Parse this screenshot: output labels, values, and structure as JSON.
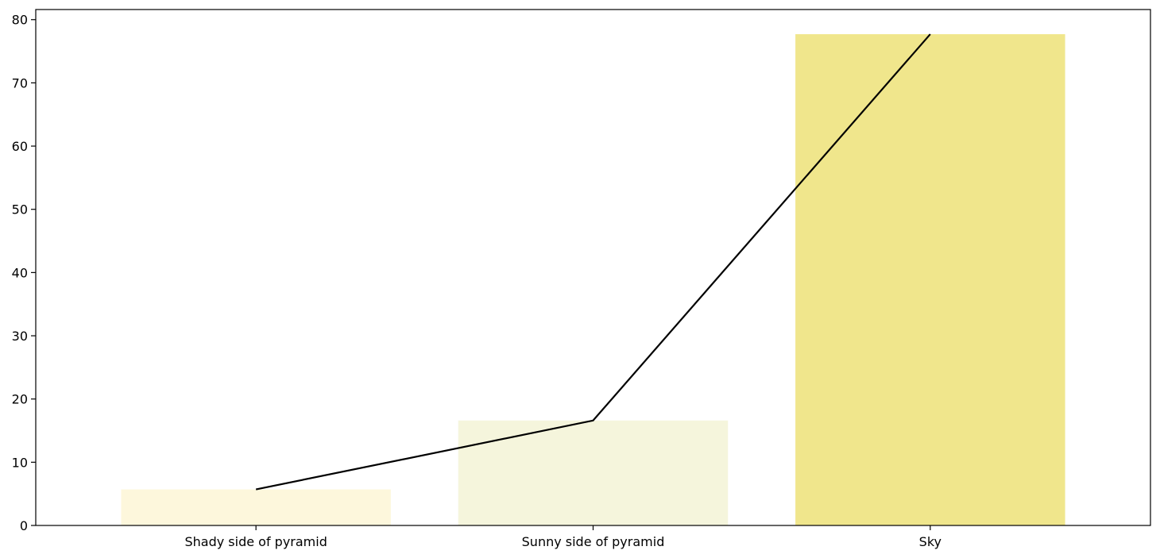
{
  "chart_data": {
    "type": "bar",
    "title": "",
    "xlabel": "",
    "ylabel": "",
    "categories": [
      "Shady side of pyramid",
      "Sunny side of pyramid",
      "Sky"
    ],
    "values": [
      5.7,
      16.6,
      77.7
    ],
    "bar_colors": [
      "#fdf7dc",
      "#f5f5dc",
      "#f0e68c"
    ],
    "line": {
      "values": [
        5.7,
        16.6,
        77.7
      ],
      "color": "#000000"
    },
    "ylim": [
      0,
      81.6
    ],
    "yticks": [
      0,
      10,
      20,
      30,
      40,
      50,
      60,
      70,
      80
    ],
    "grid": false,
    "legend": "none"
  }
}
